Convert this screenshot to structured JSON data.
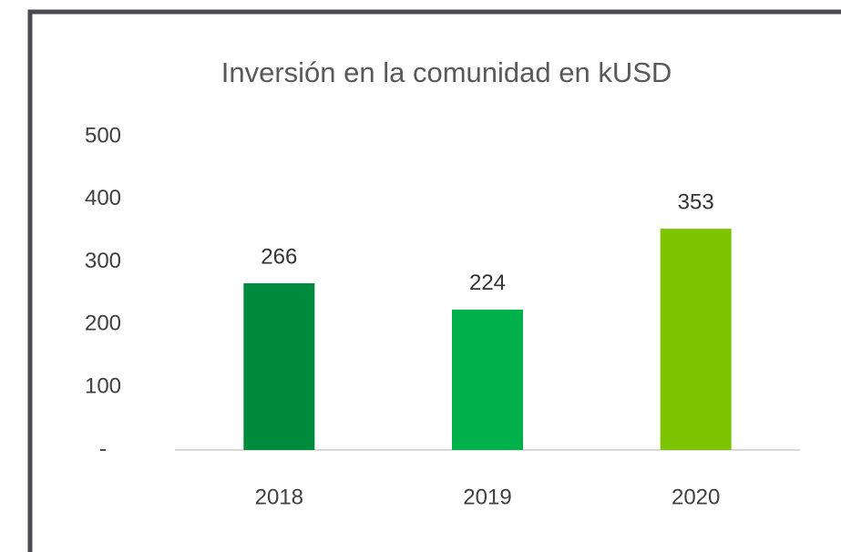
{
  "chart_data": {
    "type": "bar",
    "title": "Inversión en la comunidad en kUSD",
    "categories": [
      "2018",
      "2019",
      "2020"
    ],
    "values": [
      266,
      224,
      353
    ],
    "colors": [
      "#008a3e",
      "#00b04a",
      "#7dc300"
    ],
    "ylim": [
      0,
      500
    ],
    "yticks": [
      {
        "value": 0,
        "label": "-"
      },
      100,
      200,
      300,
      400,
      500
    ],
    "grid": false
  }
}
